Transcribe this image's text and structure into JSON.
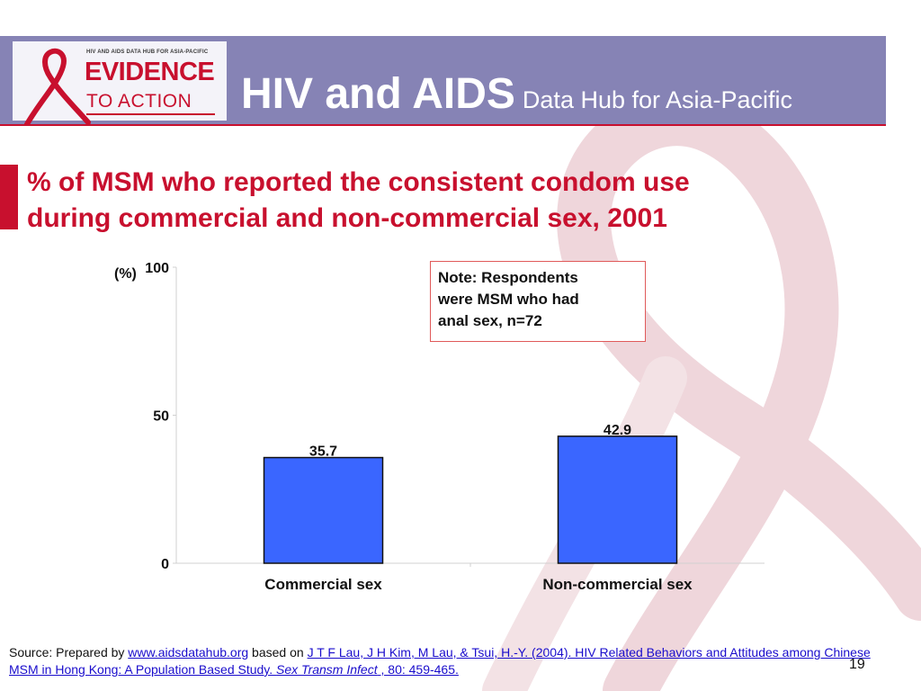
{
  "header": {
    "logo_small": "HIV AND AIDS DATA HUB FOR ASIA-PACIFIC",
    "logo_big": "EVIDENCE",
    "logo_sub": "TO ACTION",
    "title_main": "HIV and AIDS",
    "title_sub": "Data Hub for Asia-Pacific"
  },
  "colors": {
    "banner": "#8683b5",
    "accent_red": "#c8102e",
    "bar_fill": "#3a66ff"
  },
  "slide": {
    "title_line1": "% of MSM who reported the consistent condom use",
    "title_line2": "during commercial and non-commercial sex, 2001",
    "note_line1": "Note: Respondents",
    "note_line2": "were MSM who had",
    "note_line3": "anal sex, n=72",
    "page_number": "19"
  },
  "chart_data": {
    "type": "bar",
    "categories": [
      "Commercial sex",
      "Non-commercial sex"
    ],
    "values": [
      35.7,
      42.9
    ],
    "value_labels": [
      "35.7",
      "42.9"
    ],
    "yticks": [
      "0",
      "50",
      "100"
    ],
    "ylabel": "(%)",
    "ylim": [
      0,
      100
    ]
  },
  "source": {
    "prefix": "Source: Prepared by ",
    "link1": "www.aidsdatahub.org",
    "mid": " based on ",
    "link2": "J T F Lau, J H Kim, M Lau, & Tsui, H.-Y. (2004). HIV Related Behaviors and Attitudes among Chinese MSM in Hong Kong: A Population Based Study. ",
    "journal": "Sex Transm Infect",
    "tail": " , 80: 459-465."
  }
}
